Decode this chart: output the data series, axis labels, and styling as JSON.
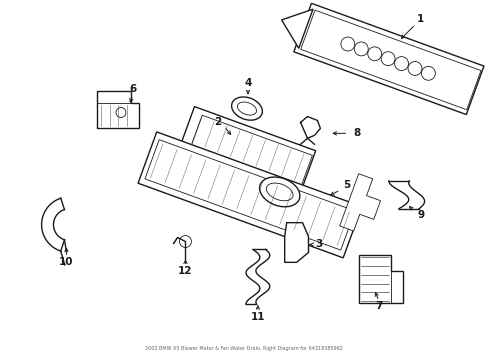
{
  "background_color": "#ffffff",
  "line_color": "#1a1a1a",
  "figsize": [
    4.89,
    3.6
  ],
  "dpi": 100,
  "label_fontsize": 7.5,
  "bottom_text": "2002 BMW X5 Blower Motor & Fan Water Drain, Right Diagram for 64318385982"
}
